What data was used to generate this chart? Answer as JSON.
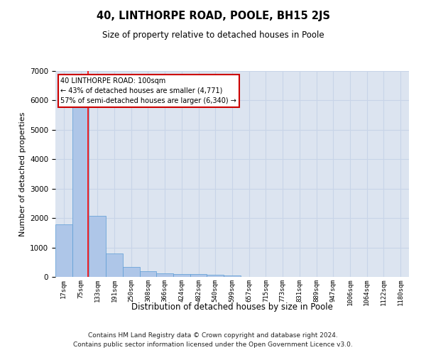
{
  "title": "40, LINTHORPE ROAD, POOLE, BH15 2JS",
  "subtitle": "Size of property relative to detached houses in Poole",
  "xlabel": "Distribution of detached houses by size in Poole",
  "ylabel": "Number of detached properties",
  "bin_labels": [
    "17sqm",
    "75sqm",
    "133sqm",
    "191sqm",
    "250sqm",
    "308sqm",
    "366sqm",
    "424sqm",
    "482sqm",
    "540sqm",
    "599sqm",
    "657sqm",
    "715sqm",
    "773sqm",
    "831sqm",
    "889sqm",
    "947sqm",
    "1006sqm",
    "1064sqm",
    "1122sqm",
    "1180sqm"
  ],
  "bar_heights": [
    1780,
    5780,
    2080,
    800,
    340,
    190,
    115,
    100,
    100,
    80,
    60,
    0,
    0,
    0,
    0,
    0,
    0,
    0,
    0,
    0,
    0
  ],
  "bar_color": "#aec6e8",
  "bar_edgecolor": "#5b9bd5",
  "grid_color": "#c8d4e8",
  "background_color": "#dce4f0",
  "red_line_x": 1.42,
  "annotation_text": "40 LINTHORPE ROAD: 100sqm\n← 43% of detached houses are smaller (4,771)\n57% of semi-detached houses are larger (6,340) →",
  "annotation_box_color": "#cc0000",
  "ylim": [
    0,
    7000
  ],
  "yticks": [
    0,
    1000,
    2000,
    3000,
    4000,
    5000,
    6000,
    7000
  ],
  "footnote1": "Contains HM Land Registry data © Crown copyright and database right 2024.",
  "footnote2": "Contains public sector information licensed under the Open Government Licence v3.0."
}
